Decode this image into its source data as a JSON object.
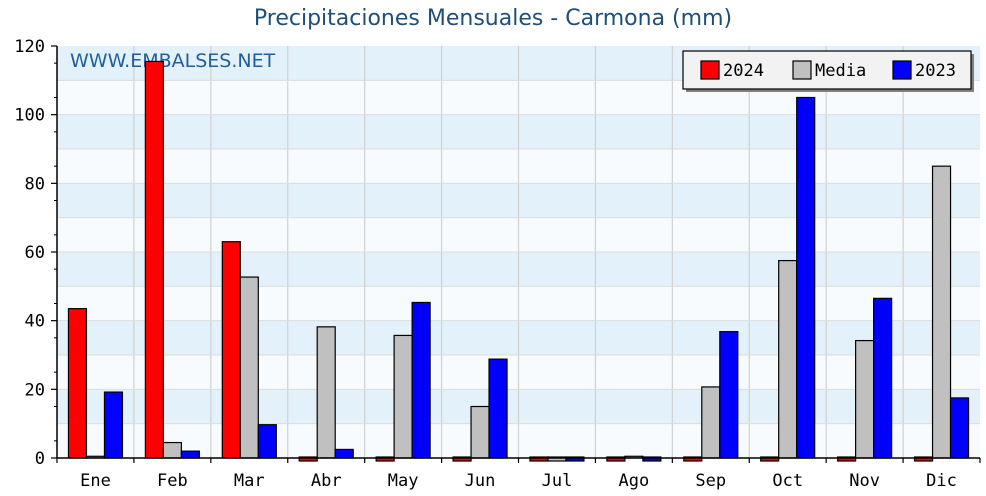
{
  "chart_data": {
    "type": "bar",
    "title": "Precipitaciones Mensuales - Carmona (mm)",
    "watermark": "WWW.EMBALSES.NET",
    "categories": [
      "Ene",
      "Feb",
      "Mar",
      "Abr",
      "May",
      "Jun",
      "Jul",
      "Ago",
      "Sep",
      "Oct",
      "Nov",
      "Dic"
    ],
    "series": [
      {
        "name": "2024",
        "color": "#ff0000",
        "values": [
          43.5,
          115.5,
          63,
          0,
          0,
          0,
          0,
          0,
          0,
          0,
          0,
          0
        ]
      },
      {
        "name": "Media",
        "color": "#c0c0c0",
        "values": [
          0.5,
          4.5,
          52.7,
          38.2,
          35.7,
          15,
          0,
          0.5,
          20.7,
          57.5,
          34.2,
          85
        ]
      },
      {
        "name": "2023",
        "color": "#0000ff",
        "values": [
          19.2,
          2,
          9.7,
          2.5,
          45.3,
          28.8,
          0,
          0,
          36.8,
          105,
          46.5,
          17.5
        ]
      }
    ],
    "ylim": [
      0,
      120
    ],
    "yticks": [
      "0",
      "20",
      "40",
      "60",
      "80",
      "100",
      "120"
    ],
    "grid": true,
    "legend_position": "top-right"
  }
}
